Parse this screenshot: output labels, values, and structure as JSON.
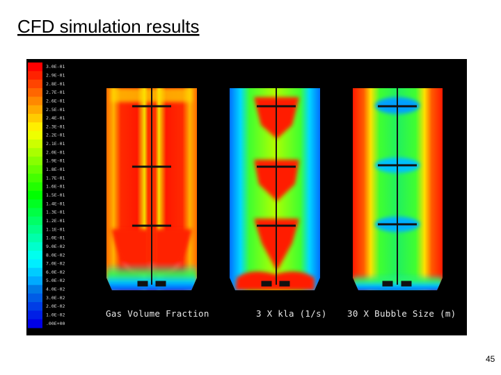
{
  "title": "CFD simulation results",
  "colorbar_labels": [
    "3.0E-01",
    "2.9E-01",
    "2.8E-01",
    "2.7E-01",
    "2.6E-01",
    "2.5E-01",
    "2.4E-01",
    "2.3E-01",
    "2.2E-01",
    "2.1E-01",
    "2.0E-01",
    "1.9E-01",
    "1.8E-01",
    "1.7E-01",
    "1.6E-01",
    "1.5E-01",
    "1.4E-01",
    "1.3E-01",
    "1.2E-01",
    "1.1E-01",
    "1.0E-01",
    "9.0E-02",
    "8.0E-02",
    "7.0E-02",
    "6.0E-02",
    "5.0E-02",
    "4.0E-02",
    "3.0E-02",
    "2.0E-02",
    "1.0E-02",
    ".00E+00"
  ],
  "panels": [
    {
      "caption": "Gas Volume Fraction"
    },
    {
      "caption": "3 X kla (1/s)"
    },
    {
      "caption": "30 X Bubble Size (m)"
    }
  ],
  "page_number": "45"
}
